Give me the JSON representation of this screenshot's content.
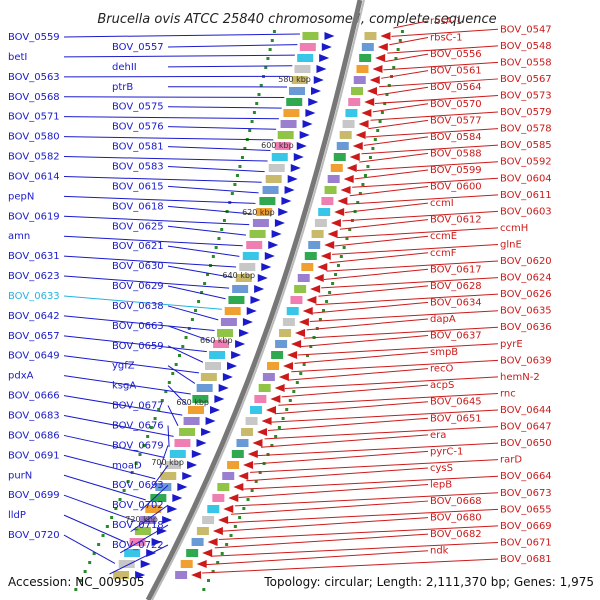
{
  "title": "Brucella ovis ATCC 25840 chromosome I, complete sequence",
  "footer": {
    "accession": "Accession: NC_009505",
    "summary": "Topology: circular; Length: 2,111,370 bp; Genes: 1,975"
  },
  "kbp_ticks": [
    "580 kbp",
    "600 kbp",
    "620 kbp",
    "640 kbp",
    "660 kbp",
    "680 kbp",
    "700 kbp",
    "720 kbp"
  ],
  "left_labels": [
    "BOV_0559",
    "BOV_0557",
    "betI",
    "dehII",
    "BOV_0563",
    "ptrB",
    "BOV_0568",
    "BOV_0575",
    "BOV_0571",
    "BOV_0576",
    "BOV_0580",
    "BOV_0581",
    "BOV_0582",
    "BOV_0583",
    "BOV_0614",
    "BOV_0615",
    "pepN",
    "BOV_0618",
    "BOV_0619",
    "BOV_0625",
    "amn",
    "BOV_0621",
    "BOV_0631",
    "BOV_0630",
    "BOV_0623",
    "BOV_0629",
    "BOV_0633",
    "BOV_0638",
    "BOV_0642",
    "BOV_0663",
    "BOV_0657",
    "BOV_0659",
    "BOV_0649",
    "ygfZ",
    "pdxA",
    "ksgA",
    "BOV_0666",
    "BOV_0677",
    "BOV_0683",
    "BOV_0676",
    "BOV_0686",
    "BOV_0679",
    "BOV_0691",
    "moaD",
    "purN",
    "BOV_0693",
    "BOV_0699",
    "BOV_0702",
    "lldP",
    "BOV_0718",
    "BOV_0720",
    "BOV_0722"
  ],
  "right_labels": [
    "rbsA-1",
    "BOV_0547",
    "rbsC-1",
    "BOV_0548",
    "BOV_0556",
    "BOV_0558",
    "BOV_0561",
    "BOV_0567",
    "BOV_0564",
    "BOV_0573",
    "BOV_0570",
    "BOV_0579",
    "BOV_0577",
    "BOV_0578",
    "BOV_0584",
    "BOV_0585",
    "BOV_0588",
    "BOV_0592",
    "BOV_0599",
    "BOV_0604",
    "BOV_0600",
    "BOV_0611",
    "ccmI",
    "BOV_0603",
    "BOV_0612",
    "ccmH",
    "ccmE",
    "glnE",
    "ccmF",
    "BOV_0620",
    "BOV_0617",
    "BOV_0624",
    "BOV_0628",
    "BOV_0626",
    "BOV_0634",
    "BOV_0635",
    "dapA",
    "BOV_0636",
    "BOV_0637",
    "pyrE",
    "smpB",
    "BOV_0639",
    "recO",
    "hemN-2",
    "acpS",
    "rnc",
    "BOV_0645",
    "BOV_0644",
    "BOV_0651",
    "BOV_0647",
    "era",
    "BOV_0650",
    "pyrC-1",
    "rarD",
    "cysS",
    "BOV_0664",
    "lepB",
    "BOV_0673",
    "BOV_0668",
    "BOV_0655",
    "BOV_0680",
    "BOV_0669",
    "BOV_0682",
    "BOV_0671",
    "ndk",
    "BOV_0681"
  ],
  "colors": {
    "forward": "#1a1acc",
    "reverse": "#cc1a1a",
    "highlight": "#22b5e0",
    "backbone": "#777777",
    "tick": "#2a8a2a"
  }
}
